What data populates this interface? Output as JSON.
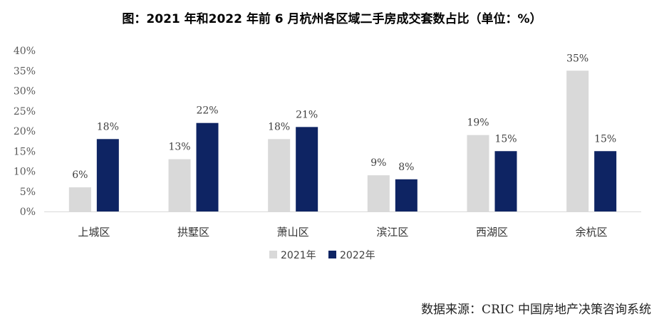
{
  "chart_data": {
    "type": "bar",
    "title": "图：2021 年和2022 年前 6 月杭州各区域二手房成交套数占比（单位：%）",
    "categories": [
      "上城区",
      "拱墅区",
      "萧山区",
      "滨江区",
      "西湖区",
      "余杭区"
    ],
    "series": [
      {
        "name": "2021年",
        "values": [
          6,
          13,
          18,
          9,
          19,
          35
        ],
        "labels": [
          "6%",
          "13%",
          "18%",
          "9%",
          "19%",
          "35%"
        ],
        "color": "#d9d9d9"
      },
      {
        "name": "2022年",
        "values": [
          18,
          22,
          21,
          8,
          15,
          15
        ],
        "labels": [
          "18%",
          "22%",
          "21%",
          "8%",
          "15%",
          "15%"
        ],
        "color": "#0e2463"
      }
    ],
    "yticks": [
      "0%",
      "5%",
      "10%",
      "15%",
      "20%",
      "25%",
      "30%",
      "35%",
      "40%"
    ],
    "ylim": [
      0,
      40
    ],
    "grid": false,
    "legend_position": "bottom"
  },
  "source_note": "数据来源：CRIC 中国房地产决策咨询系统"
}
